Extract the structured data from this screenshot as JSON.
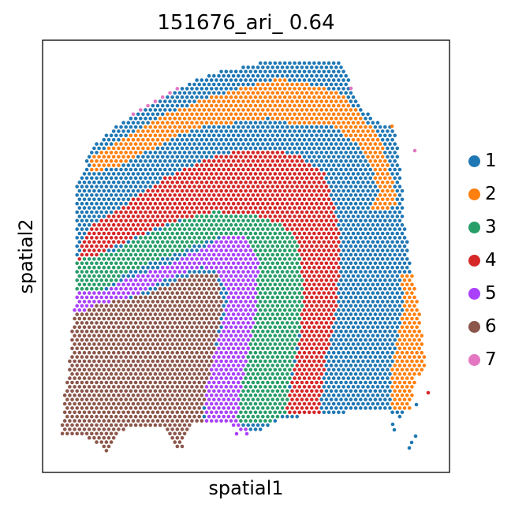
{
  "chart_data": {
    "type": "scatter",
    "title": "151676_ari_ 0.64",
    "xlabel": "spatial1",
    "ylabel": "spatial2",
    "ticks": "hidden",
    "grid": false,
    "legend_position": "right",
    "series": [
      {
        "name": "1",
        "color": "#1f77b4"
      },
      {
        "name": "2",
        "color": "#ff7f0e"
      },
      {
        "name": "3",
        "color": "#279e68"
      },
      {
        "name": "4",
        "color": "#d62728"
      },
      {
        "name": "5",
        "color": "#aa40fc"
      },
      {
        "name": "6",
        "color": "#8c564b"
      },
      {
        "name": "7",
        "color": "#e377c2"
      }
    ]
  }
}
